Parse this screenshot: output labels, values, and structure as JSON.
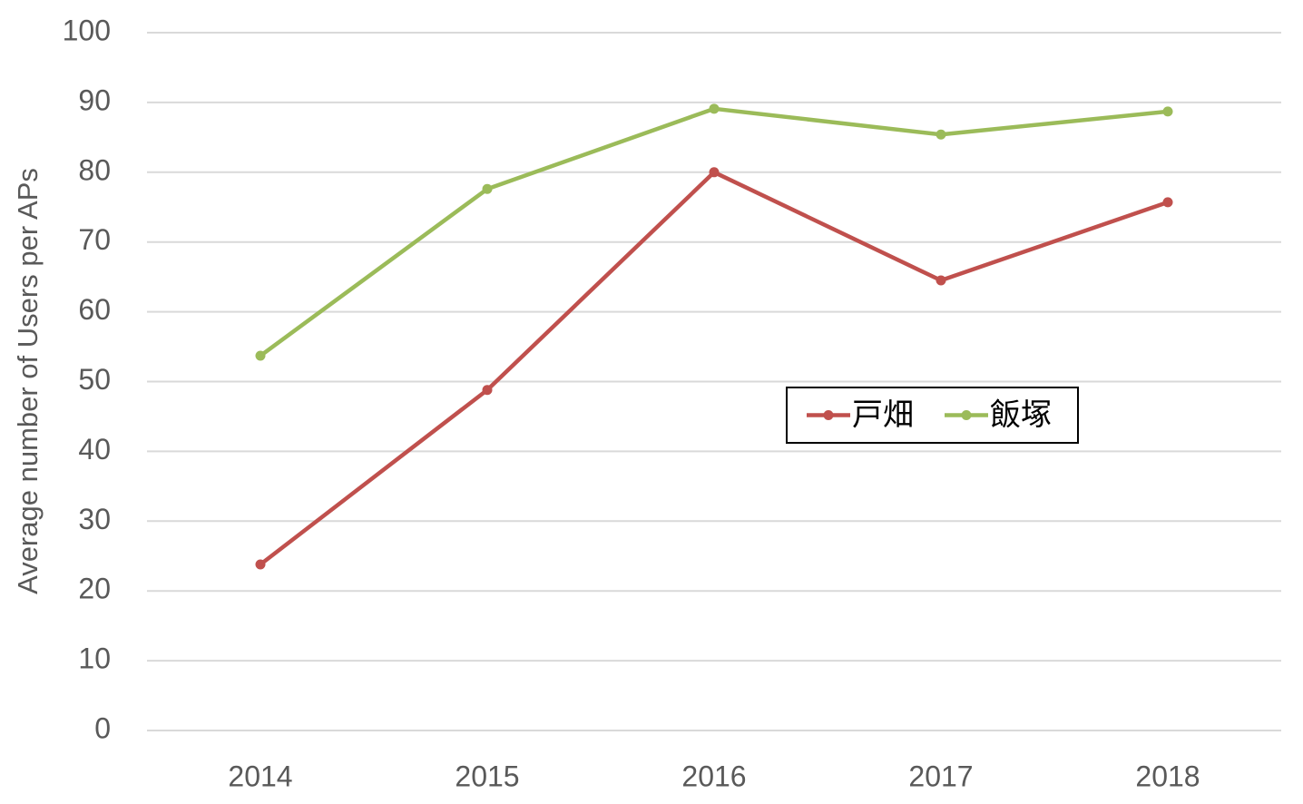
{
  "chart_data": {
    "type": "line",
    "y_label": "Average number of Users per APs",
    "categories": [
      "2014",
      "2015",
      "2016",
      "2017",
      "2018"
    ],
    "series": [
      {
        "name": "戸畑",
        "color": "#c0504d",
        "values": [
          23.8,
          48.8,
          80,
          64.5,
          75.7
        ]
      },
      {
        "name": "飯塚",
        "color": "#9bbb59",
        "values": [
          53.7,
          77.6,
          89.1,
          85.4,
          88.7
        ]
      }
    ],
    "ylim": [
      0,
      100
    ],
    "yticks": [
      0,
      10,
      20,
      30,
      40,
      50,
      60,
      70,
      80,
      90,
      100
    ],
    "grid": true
  }
}
